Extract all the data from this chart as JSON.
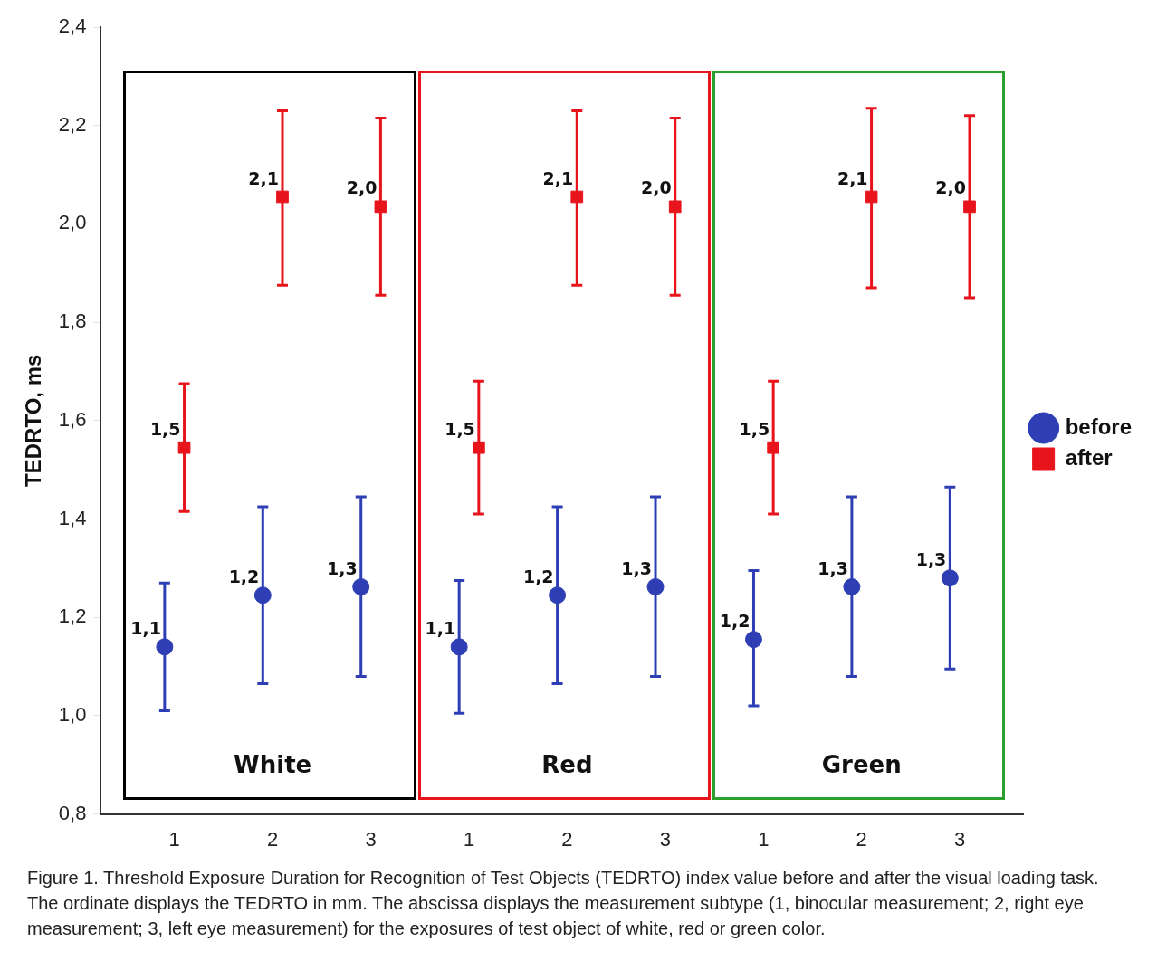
{
  "chart_data": {
    "type": "scatter",
    "ylabel": "TEDRTO, ms",
    "categories": [
      "1",
      "2",
      "3",
      "1",
      "2",
      "3",
      "1",
      "2",
      "3"
    ],
    "series": [
      {
        "name": "before",
        "color": "#2e3fb5",
        "marker": "circle",
        "values": [
          1.14,
          1.245,
          1.262,
          1.14,
          1.245,
          1.262,
          1.155,
          1.262,
          1.28
        ],
        "errors": [
          [
            1.01,
            1.27
          ],
          [
            1.065,
            1.425
          ],
          [
            1.08,
            1.445
          ],
          [
            1.005,
            1.275
          ],
          [
            1.065,
            1.425
          ],
          [
            1.08,
            1.445
          ],
          [
            1.02,
            1.295
          ],
          [
            1.08,
            1.445
          ],
          [
            1.095,
            1.465
          ]
        ],
        "value_labels": [
          "1,1",
          "1,2",
          "1,3",
          "1,1",
          "1,2",
          "1,3",
          "1,2",
          "1,3",
          "1,3"
        ]
      },
      {
        "name": "after",
        "color": "#e8141c",
        "marker": "square",
        "values": [
          1.545,
          2.055,
          2.035,
          1.545,
          2.055,
          2.035,
          1.545,
          2.055,
          2.035
        ],
        "errors": [
          [
            1.415,
            1.675
          ],
          [
            1.875,
            2.23
          ],
          [
            1.855,
            2.215
          ],
          [
            1.41,
            1.68
          ],
          [
            1.875,
            2.23
          ],
          [
            1.855,
            2.215
          ],
          [
            1.41,
            1.68
          ],
          [
            1.87,
            2.235
          ],
          [
            1.85,
            2.22
          ]
        ],
        "value_labels": [
          "1,5",
          "2,1",
          "2,0",
          "1,5",
          "2,1",
          "2,0",
          "1,5",
          "2,1",
          "2,0"
        ]
      }
    ],
    "ylim": [
      0.8,
      2.4
    ],
    "yticks": [
      {
        "value": 0.8,
        "label": "0,8"
      },
      {
        "value": 1.0,
        "label": "1,0"
      },
      {
        "value": 1.2,
        "label": "1,2"
      },
      {
        "value": 1.4,
        "label": "1,4"
      },
      {
        "value": 1.6,
        "label": "1,6"
      },
      {
        "value": 1.8,
        "label": "1,8"
      },
      {
        "value": 2.0,
        "label": "2,0"
      },
      {
        "value": 2.2,
        "label": "2,2"
      },
      {
        "value": 2.4,
        "label": "2,4"
      }
    ],
    "grid": false,
    "legend": "right",
    "annotations": [
      "White",
      "Red",
      "Green",
      "Figure 1. Threshold Exposure Duration for Recognition of Test Objects (TEDRTO) index value before and after the visual loading task. The ordinate displays the TEDRTO in mm. The abscissa displays the measurement subtype (1, binocular measurement; 2, right eye measurement; 3, left eye measurement) for the exposures of test object of white, red or green color."
    ]
  }
}
